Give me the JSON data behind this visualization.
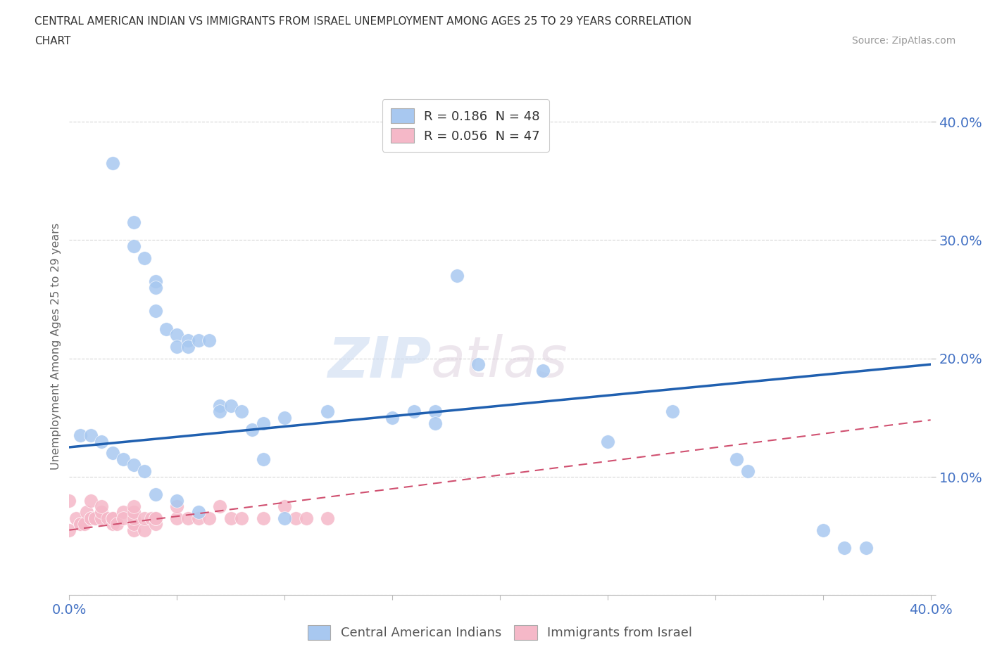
{
  "title_line1": "CENTRAL AMERICAN INDIAN VS IMMIGRANTS FROM ISRAEL UNEMPLOYMENT AMONG AGES 25 TO 29 YEARS CORRELATION",
  "title_line2": "CHART",
  "source_text": "Source: ZipAtlas.com",
  "ylabel": "Unemployment Among Ages 25 to 29 years",
  "legend_r1_black": "R = ",
  "legend_r1_blue": "0.186",
  "legend_r1_black2": "  N = ",
  "legend_r1_blue2": "48",
  "legend_r2_black": "R = ",
  "legend_r2_blue": "0.056",
  "legend_r2_black2": "  N = ",
  "legend_r2_blue2": "47",
  "legend_label1": "Central American Indians",
  "legend_label2": "Immigrants from Israel",
  "blue_color": "#a8c8f0",
  "pink_color": "#f5b8c8",
  "blue_line_color": "#2060b0",
  "pink_line_color": "#d05070",
  "watermark_zip": "ZIP",
  "watermark_atlas": "atlas",
  "blue_scatter_x": [
    0.02,
    0.03,
    0.03,
    0.035,
    0.04,
    0.04,
    0.04,
    0.045,
    0.05,
    0.05,
    0.055,
    0.055,
    0.06,
    0.065,
    0.07,
    0.07,
    0.075,
    0.08,
    0.085,
    0.09,
    0.09,
    0.1,
    0.12,
    0.15,
    0.16,
    0.17,
    0.17,
    0.18,
    0.19,
    0.22,
    0.25,
    0.28,
    0.31,
    0.315,
    0.35,
    0.36,
    0.37,
    0.005,
    0.01,
    0.015,
    0.02,
    0.025,
    0.03,
    0.035,
    0.04,
    0.05,
    0.06,
    0.1
  ],
  "blue_scatter_y": [
    0.365,
    0.315,
    0.295,
    0.285,
    0.265,
    0.26,
    0.24,
    0.225,
    0.22,
    0.21,
    0.215,
    0.21,
    0.215,
    0.215,
    0.16,
    0.155,
    0.16,
    0.155,
    0.14,
    0.145,
    0.115,
    0.15,
    0.155,
    0.15,
    0.155,
    0.155,
    0.145,
    0.27,
    0.195,
    0.19,
    0.13,
    0.155,
    0.115,
    0.105,
    0.055,
    0.04,
    0.04,
    0.135,
    0.135,
    0.13,
    0.12,
    0.115,
    0.11,
    0.105,
    0.085,
    0.08,
    0.07,
    0.065
  ],
  "pink_scatter_x": [
    0.0,
    0.0,
    0.003,
    0.005,
    0.005,
    0.007,
    0.008,
    0.01,
    0.01,
    0.01,
    0.012,
    0.012,
    0.015,
    0.015,
    0.015,
    0.018,
    0.02,
    0.02,
    0.02,
    0.02,
    0.022,
    0.025,
    0.025,
    0.03,
    0.03,
    0.03,
    0.03,
    0.03,
    0.035,
    0.035,
    0.038,
    0.04,
    0.04,
    0.04,
    0.05,
    0.05,
    0.055,
    0.06,
    0.065,
    0.07,
    0.075,
    0.08,
    0.09,
    0.1,
    0.105,
    0.11,
    0.12
  ],
  "pink_scatter_y": [
    0.08,
    0.055,
    0.065,
    0.06,
    0.06,
    0.06,
    0.07,
    0.065,
    0.065,
    0.08,
    0.065,
    0.065,
    0.065,
    0.07,
    0.075,
    0.065,
    0.06,
    0.065,
    0.065,
    0.065,
    0.06,
    0.07,
    0.065,
    0.055,
    0.06,
    0.065,
    0.07,
    0.075,
    0.055,
    0.065,
    0.065,
    0.06,
    0.065,
    0.065,
    0.065,
    0.075,
    0.065,
    0.065,
    0.065,
    0.075,
    0.065,
    0.065,
    0.065,
    0.075,
    0.065,
    0.065,
    0.065
  ],
  "xlim": [
    0.0,
    0.4
  ],
  "ylim": [
    0.0,
    0.42
  ],
  "blue_line_x0": 0.0,
  "blue_line_y0": 0.125,
  "blue_line_x1": 0.4,
  "blue_line_y1": 0.195,
  "pink_line_x0": 0.0,
  "pink_line_y0": 0.055,
  "pink_line_x1": 0.4,
  "pink_line_y1": 0.148
}
